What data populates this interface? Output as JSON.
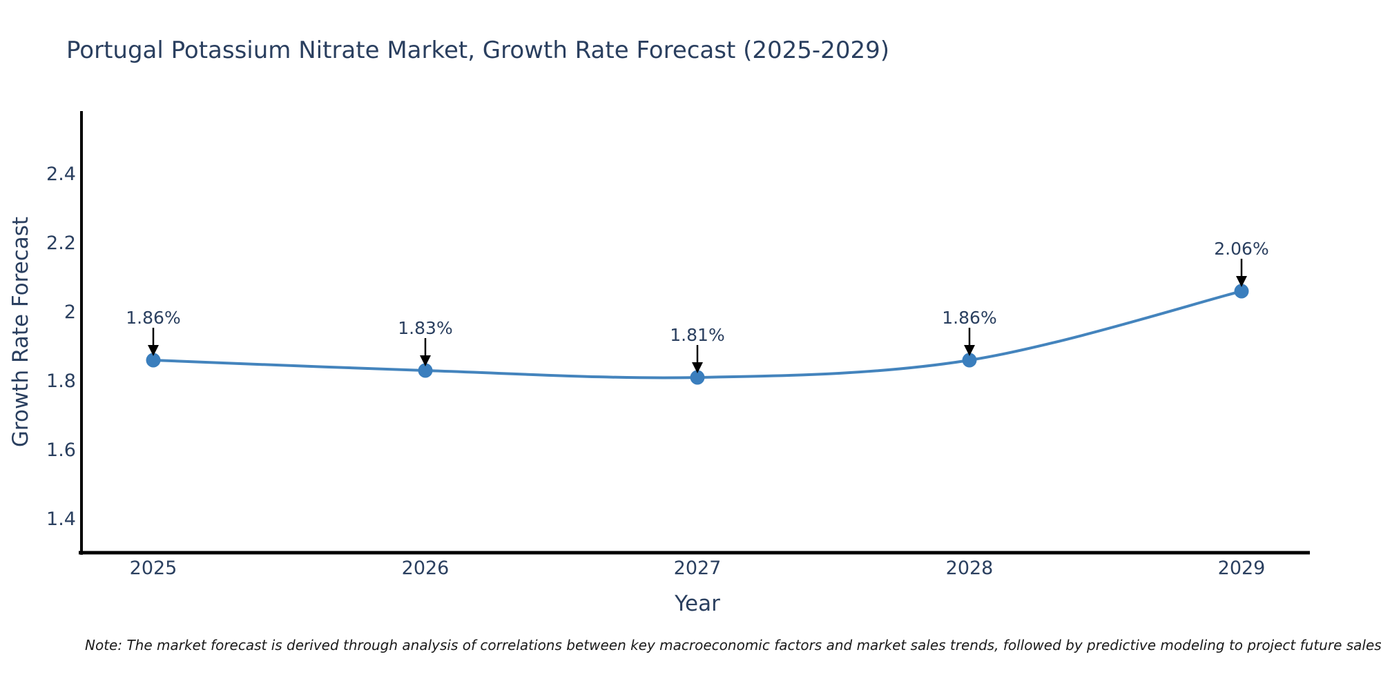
{
  "page": {
    "background_color": "#ffffff"
  },
  "chart_data": {
    "type": "line",
    "title": "Portugal Potassium Nitrate Market, Growth Rate Forecast (2025-2029)",
    "xlabel": "Year",
    "ylabel": "Growth Rate Forecast",
    "categories": [
      "2025",
      "2026",
      "2027",
      "2028",
      "2029"
    ],
    "series": [
      {
        "name": "Growth Rate Forecast",
        "values": [
          1.86,
          1.83,
          1.81,
          1.86,
          2.06
        ]
      }
    ],
    "point_labels": [
      "1.86%",
      "1.83%",
      "1.81%",
      "1.86%",
      "2.06%"
    ],
    "ytick_labels": [
      "1.4",
      "1.6",
      "1.8",
      "2",
      "2.2",
      "2.4"
    ],
    "ytick_values": [
      1.4,
      1.6,
      1.8,
      2.0,
      2.2,
      2.4
    ],
    "ylim": [
      1.3,
      2.582
    ],
    "line_shape": "spline",
    "grid": false,
    "legend": false,
    "annotations_have_arrows": true,
    "colors": {
      "line": "#4484bd",
      "marker": "#3a7ebd",
      "axis_line": "#000000",
      "tick_text": "#2a3f5f",
      "title_text": "#2a3f5f",
      "annotation_text": "#2a3f5f",
      "arrow": "#000000"
    }
  },
  "note": {
    "text": "Note: The market forecast is derived through analysis of correlations between key macroeconomic factors and market sales trends, followed by predictive modeling to project future sales"
  }
}
